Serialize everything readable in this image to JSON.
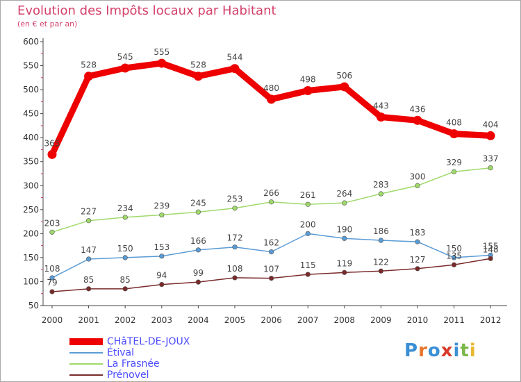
{
  "chart_data": {
    "type": "line",
    "title": "Evolution des Impôts locaux par Habitant",
    "subtitle": "(en € et par an)",
    "x": [
      "2000",
      "2001",
      "2002",
      "2003",
      "2004",
      "2005",
      "2006",
      "2007",
      "2008",
      "2009",
      "2010",
      "2011",
      "2012"
    ],
    "ylim": [
      50,
      600
    ],
    "yticks": [
      50,
      100,
      150,
      200,
      250,
      300,
      350,
      400,
      450,
      500,
      550,
      600
    ],
    "grid": false,
    "legend_position": "bottom-left",
    "series": [
      {
        "name": "CHâTEL-DE-JOUX",
        "color": "#ee0000",
        "values": [
          365,
          528,
          545,
          555,
          528,
          544,
          480,
          498,
          506,
          443,
          436,
          408,
          404
        ],
        "labels": [
          "365",
          "528",
          "545",
          "555",
          "528",
          "544",
          "480",
          "498",
          "506",
          "443",
          "436",
          "408",
          "404"
        ]
      },
      {
        "name": "Étival",
        "color": "#5a9bd5",
        "values": [
          108,
          147,
          150,
          153,
          166,
          172,
          162,
          200,
          190,
          186,
          183,
          150,
          155
        ],
        "labels": [
          "108",
          "147",
          "150",
          "153",
          "166",
          "172",
          "162",
          "200",
          "190",
          "186",
          "183",
          "150",
          "155"
        ]
      },
      {
        "name": "La Frasnée",
        "color": "#9ed96a",
        "values": [
          203,
          227,
          234,
          239,
          245,
          253,
          266,
          261,
          264,
          283,
          300,
          329,
          337
        ],
        "labels": [
          "203",
          "227",
          "234",
          "239",
          "245",
          "253",
          "266",
          "261",
          "264",
          "283",
          "300",
          "329",
          "337"
        ]
      },
      {
        "name": "Prénovel",
        "color": "#7a2a2a",
        "values": [
          79,
          85,
          85,
          94,
          99,
          108,
          107,
          115,
          119,
          122,
          127,
          135,
          148
        ],
        "labels": [
          "79",
          "85",
          "85",
          "94",
          "99",
          "108",
          "107",
          "115",
          "119",
          "122",
          "127",
          "135",
          "148"
        ]
      }
    ]
  },
  "logo": {
    "text": "Proxiti"
  }
}
